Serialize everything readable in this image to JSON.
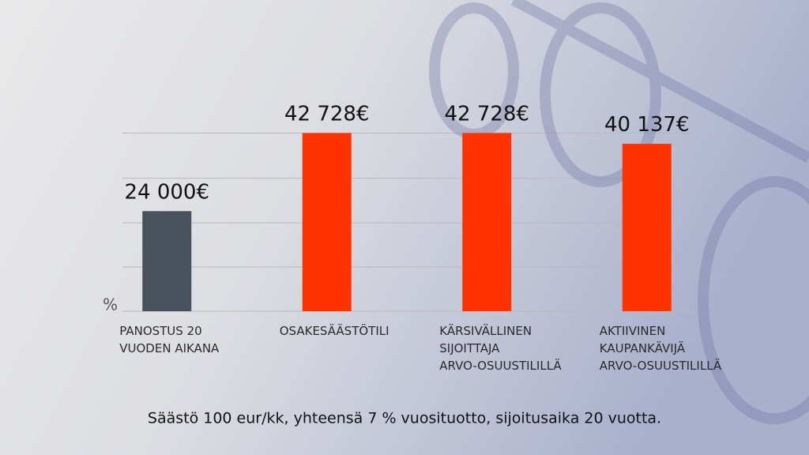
{
  "chart_data": {
    "type": "bar",
    "categories": [
      "PANOSTUS 20\nVUODEN AIKANA",
      "OSAKESÄÄSTÖTILI",
      "KÄRSIVÄLLINEN\nSIJOITTAJA\nARVO-OSUUSTILILLÄ",
      "AKTIIVINEN\nKAUPANKÄVIJÄ\nARVO-OSUUSTILILLÄ"
    ],
    "values": [
      24000,
      42728,
      42728,
      40137
    ],
    "value_labels": [
      "24 000€",
      "42 728€",
      "42 728€",
      "40 137€"
    ],
    "colors": [
      "#48525f",
      "#ff3300",
      "#ff3300",
      "#ff3300"
    ],
    "y_label": "%",
    "ylim": [
      0,
      50000
    ],
    "yticks": [
      0,
      10600,
      21200,
      31900,
      42700
    ],
    "grid": true,
    "footnote": "Säästö 100 eur/kk, yhteensä 7 % vuosituotto, sijoitusaika 20 vuotta."
  }
}
